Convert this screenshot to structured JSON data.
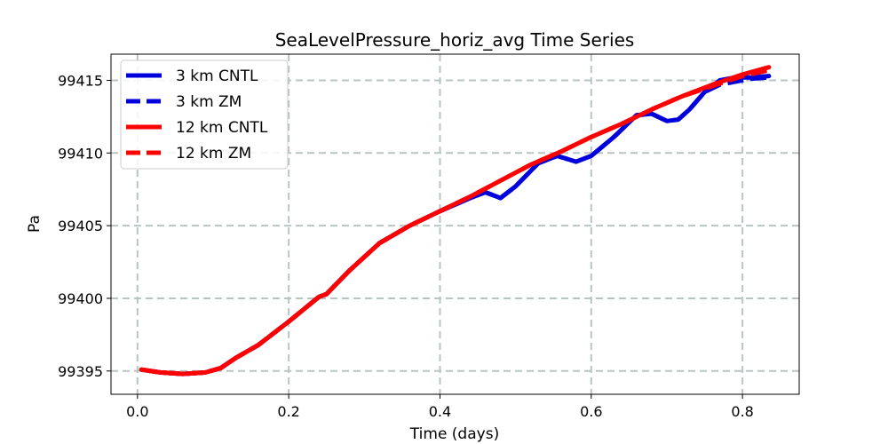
{
  "chart_data": {
    "type": "line",
    "title": "SeaLevelPressure_horiz_avg Time Series",
    "xlabel": "Time (days)",
    "ylabel": "Pa",
    "xlim": [
      -0.035,
      0.875
    ],
    "ylim": [
      99393.4,
      99416.8
    ],
    "xticks": [
      0.0,
      0.2,
      0.4,
      0.6,
      0.8
    ],
    "xtick_labels": [
      "0.0",
      "0.2",
      "0.4",
      "0.6",
      "0.8"
    ],
    "yticks": [
      99395,
      99400,
      99405,
      99410,
      99415
    ],
    "ytick_labels": [
      "99395",
      "99400",
      "99405",
      "99410",
      "99415"
    ],
    "grid": true,
    "legend_position": "upper-left",
    "series": [
      {
        "name": "3 km CNTL",
        "color": "#0000dd",
        "style": "solid",
        "x": [
          0.005,
          0.03,
          0.06,
          0.09,
          0.11,
          0.13,
          0.16,
          0.2,
          0.24,
          0.25,
          0.28,
          0.32,
          0.36,
          0.4,
          0.44,
          0.46,
          0.48,
          0.5,
          0.53,
          0.555,
          0.58,
          0.6,
          0.63,
          0.66,
          0.68,
          0.7,
          0.715,
          0.73,
          0.75,
          0.77,
          0.79,
          0.81,
          0.835
        ],
        "values": [
          99395.1,
          99394.9,
          99394.8,
          99394.9,
          99395.2,
          99395.9,
          99396.8,
          99398.4,
          99400.1,
          99400.3,
          99401.9,
          99403.8,
          99405.0,
          99406.0,
          99406.9,
          99407.3,
          99406.9,
          99407.7,
          99409.3,
          99409.8,
          99409.4,
          99409.8,
          99411.1,
          99412.6,
          99412.7,
          99412.2,
          99412.3,
          99413.0,
          99414.2,
          99415.0,
          99415.2,
          99415.2,
          99415.3
        ]
      },
      {
        "name": "3 km ZM",
        "color": "#0000dd",
        "style": "dashed",
        "x": [
          0.005,
          0.03,
          0.06,
          0.09,
          0.11,
          0.13,
          0.16,
          0.2,
          0.24,
          0.25,
          0.28,
          0.32,
          0.36,
          0.4,
          0.44,
          0.46,
          0.48,
          0.5,
          0.53,
          0.555,
          0.58,
          0.6,
          0.63,
          0.66,
          0.68,
          0.7,
          0.715,
          0.73,
          0.75,
          0.77,
          0.79,
          0.81,
          0.835
        ],
        "values": [
          99395.1,
          99394.9,
          99394.8,
          99394.9,
          99395.2,
          99395.9,
          99396.8,
          99398.4,
          99400.1,
          99400.3,
          99401.9,
          99403.8,
          99405.0,
          99406.0,
          99406.9,
          99407.3,
          99406.9,
          99407.7,
          99409.3,
          99409.8,
          99409.4,
          99409.8,
          99411.1,
          99412.6,
          99412.7,
          99412.2,
          99412.3,
          99413.0,
          99414.2,
          99414.7,
          99414.9,
          99415.1,
          99415.2
        ]
      },
      {
        "name": "12 km CNTL",
        "color": "#ff0000",
        "style": "solid",
        "x": [
          0.005,
          0.03,
          0.06,
          0.09,
          0.11,
          0.13,
          0.16,
          0.2,
          0.24,
          0.25,
          0.28,
          0.32,
          0.36,
          0.4,
          0.44,
          0.48,
          0.52,
          0.56,
          0.6,
          0.64,
          0.68,
          0.72,
          0.76,
          0.8,
          0.835
        ],
        "values": [
          99395.1,
          99394.9,
          99394.8,
          99394.9,
          99395.2,
          99395.9,
          99396.8,
          99398.4,
          99400.1,
          99400.3,
          99401.9,
          99403.8,
          99405.0,
          99406.0,
          99407.0,
          99408.1,
          99409.2,
          99410.1,
          99411.1,
          99412.0,
          99413.0,
          99413.9,
          99414.7,
          99415.4,
          99415.9
        ]
      },
      {
        "name": "12 km ZM",
        "color": "#ff0000",
        "style": "dashed",
        "x": [
          0.005,
          0.03,
          0.06,
          0.09,
          0.11,
          0.13,
          0.16,
          0.2,
          0.24,
          0.25,
          0.28,
          0.32,
          0.36,
          0.4,
          0.44,
          0.48,
          0.52,
          0.56,
          0.6,
          0.64,
          0.68,
          0.72,
          0.76,
          0.8,
          0.835
        ],
        "values": [
          99395.1,
          99394.9,
          99394.8,
          99394.9,
          99395.2,
          99395.9,
          99396.8,
          99398.4,
          99400.1,
          99400.3,
          99401.9,
          99403.8,
          99405.0,
          99406.0,
          99407.0,
          99408.1,
          99409.2,
          99410.1,
          99411.1,
          99412.0,
          99413.0,
          99413.9,
          99414.6,
          99415.3,
          99415.7
        ]
      }
    ]
  }
}
